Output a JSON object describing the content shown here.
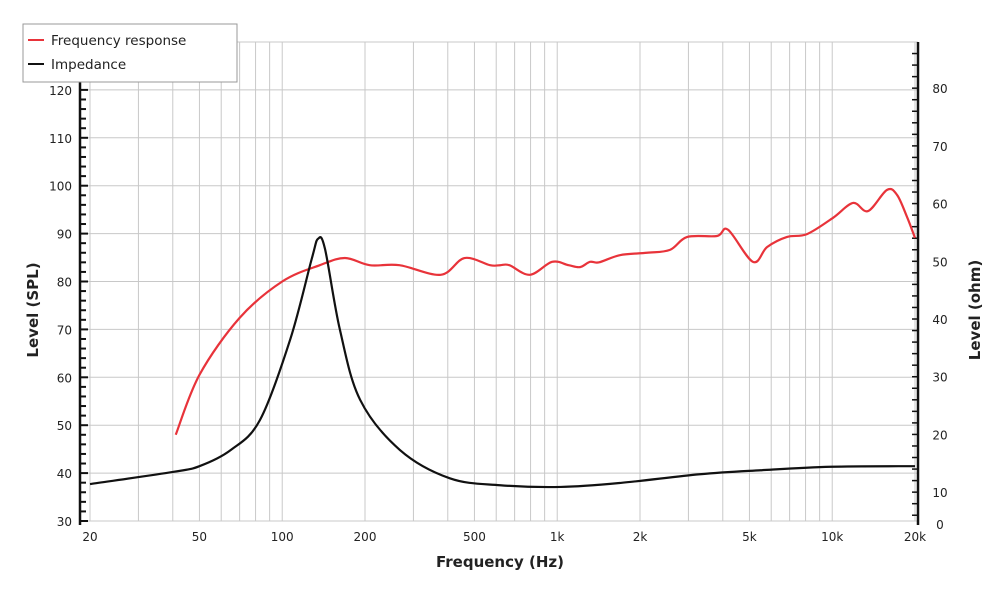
{
  "chart_data": {
    "type": "line",
    "xlabel": "Frequency (Hz)",
    "ylabel": "Level (SPL)",
    "y2label": "Level (ohm)",
    "xscale": "log",
    "xlim": [
      20,
      20000
    ],
    "ylim": [
      30,
      130
    ],
    "y2lim": [
      5,
      88
    ],
    "grid": true,
    "legend_position": "top-left",
    "x_ticks": [
      {
        "value": 20,
        "label": "20"
      },
      {
        "value": 50,
        "label": "50"
      },
      {
        "value": 100,
        "label": "100"
      },
      {
        "value": 200,
        "label": "200"
      },
      {
        "value": 500,
        "label": "500"
      },
      {
        "value": 1000,
        "label": "1k"
      },
      {
        "value": 2000,
        "label": "2k"
      },
      {
        "value": 5000,
        "label": "5k"
      },
      {
        "value": 10000,
        "label": "10k"
      },
      {
        "value": 20000,
        "label": "20k"
      }
    ],
    "y_ticks": [
      "30",
      "40",
      "50",
      "60",
      "70",
      "80",
      "90",
      "100",
      "110",
      "120"
    ],
    "y2_ticks": [
      "0",
      "10",
      "20",
      "30",
      "40",
      "50",
      "60",
      "70",
      "80"
    ],
    "series": [
      {
        "name": "Frequency response",
        "axis": "left",
        "color": "#e8333a",
        "x": [
          41,
          50,
          70,
          100,
          137,
          169,
          208,
          267,
          377,
          460,
          570,
          620,
          670,
          796,
          958,
          1100,
          1210,
          1316,
          1420,
          1690,
          2120,
          2570,
          2970,
          3810,
          4180,
          5150,
          5800,
          6850,
          8100,
          10070,
          11900,
          13500,
          15800,
          17200,
          18700,
          20000
        ],
        "y": [
          48,
          60.5,
          72.4,
          80,
          83.4,
          84.9,
          83.4,
          83.4,
          81.4,
          84.9,
          83.4,
          83.4,
          83.4,
          81.4,
          84.1,
          83.4,
          83.0,
          84.1,
          84.0,
          85.5,
          86.0,
          86.6,
          89.3,
          89.5,
          90.8,
          84.1,
          87.2,
          89.3,
          89.9,
          93.3,
          96.4,
          94.7,
          99.1,
          98.1,
          93.5,
          89.1
        ]
      },
      {
        "name": "Impedance",
        "axis": "right",
        "color": "#111111",
        "x": [
          20,
          40,
          50,
          65,
          83,
          107,
          128,
          135,
          143,
          162,
          192,
          268,
          407,
          620,
          1030,
          1700,
          3300,
          5500,
          9900,
          20000
        ],
        "y": [
          11.4,
          13.5,
          14.5,
          17.3,
          22.5,
          36.5,
          50.4,
          53.9,
          52.2,
          38.2,
          26,
          17.3,
          12.4,
          11.2,
          10.9,
          11.6,
          13.1,
          13.8,
          14.4,
          14.5
        ]
      }
    ]
  }
}
